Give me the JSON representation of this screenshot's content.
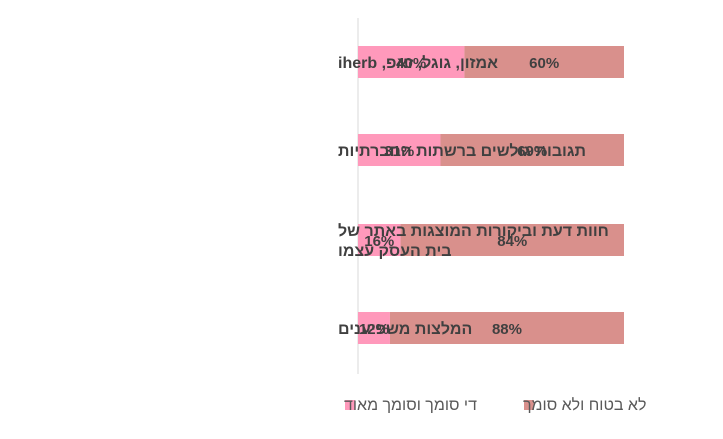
{
  "chart_data": {
    "type": "bar",
    "orientation": "horizontal",
    "stacked": true,
    "percent_stacked": true,
    "categories": [
      [
        "אמזון, גוגל, זאפ, iherb"
      ],
      [
        "תגובות גולשים ברשתות החברתיות"
      ],
      [
        "חוות דעת וביקורות המוצגות באתר של",
        "בית העסק עצמו"
      ],
      [
        "המלצות משפיענים"
      ]
    ],
    "series": [
      {
        "name": "די סומך וסומך מאוד",
        "color": "#ff99bb",
        "values": [
          40,
          31,
          16,
          12
        ],
        "data_labels": [
          "40%",
          "31%",
          "16%",
          "12%"
        ]
      },
      {
        "name": "לא בטוח ולא סומך",
        "color": "#d9908c",
        "values": [
          60,
          69,
          84,
          88
        ],
        "data_labels": [
          "60%",
          "69%",
          "84%",
          "88%"
        ]
      }
    ],
    "xlim": [
      0,
      100
    ],
    "grid": false,
    "legend_position": "bottom"
  }
}
